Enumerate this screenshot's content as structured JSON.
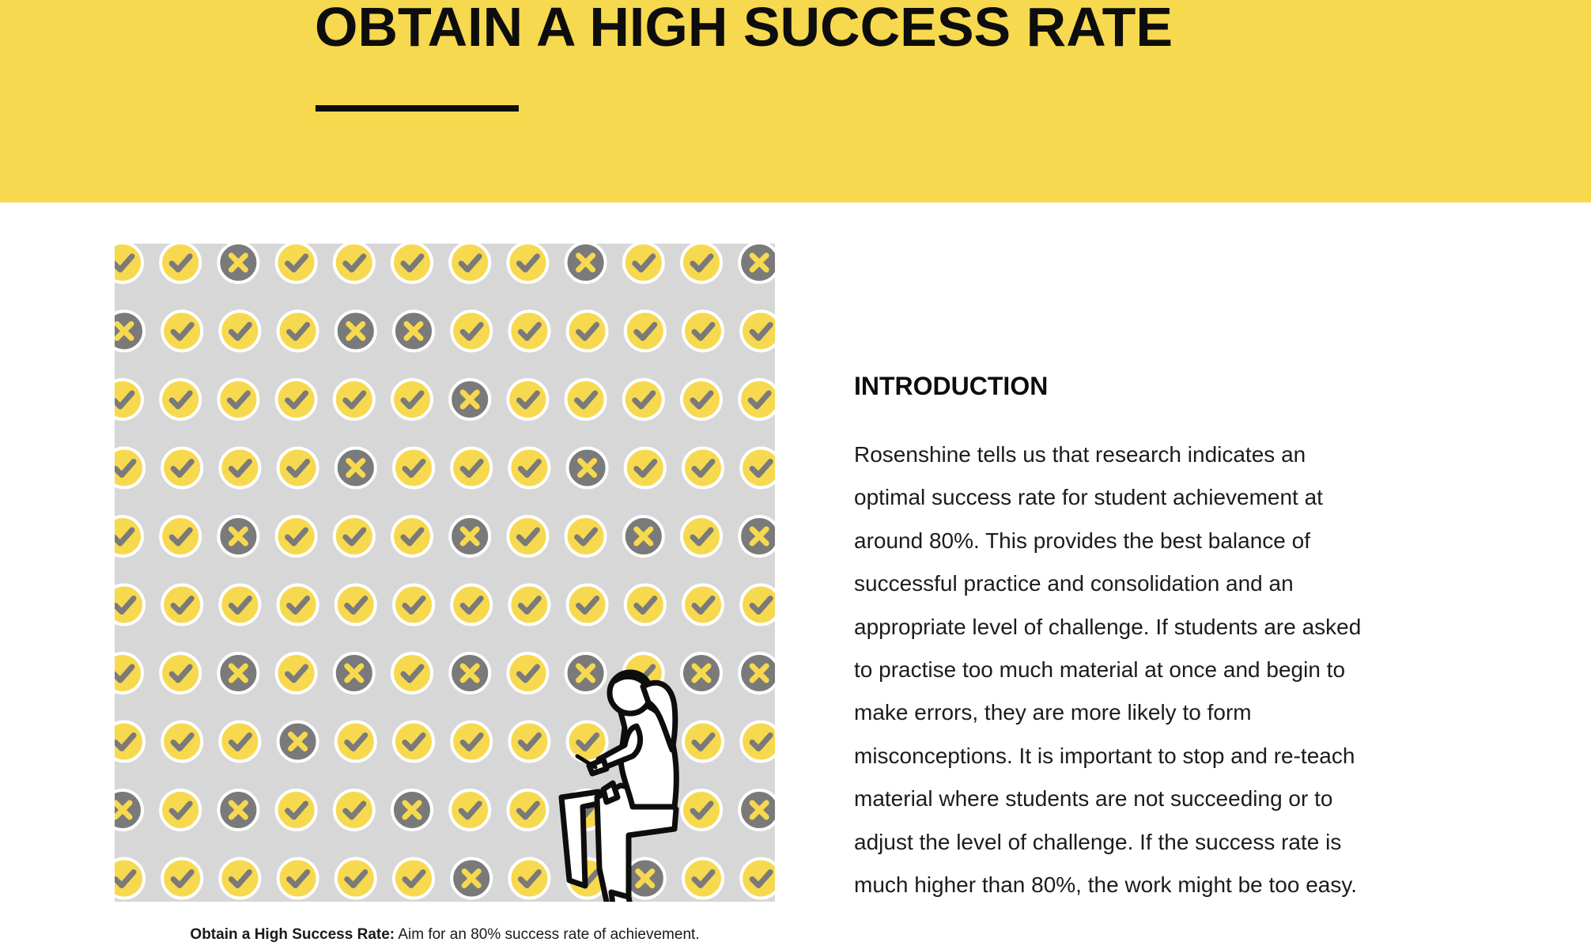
{
  "hero": {
    "title": "OBTAIN A HIGH SUCCESS RATE",
    "background_color": "#f7d94f"
  },
  "figure": {
    "description_icons": {
      "correct": "check-icon",
      "incorrect": "cross-icon",
      "person": "seated-student-writing-icon"
    },
    "colors": {
      "background": "#d7d7d7",
      "yellow": "#f7d94f",
      "gray": "#7a7a7a"
    },
    "grid": [
      "CCXCCCCCXCCX",
      "XCCCXXCCCCCC",
      "CCCCCCXCCCCC",
      "CCCCXCCCXCCC",
      "CCXCCCXCCXCX",
      "CCCCCCCCCCCC",
      "CCXCXCXCXCXX",
      "CCCXCCCCCCCC",
      "XCXCCXCCCCCX",
      "CCCCCCXCCXCC"
    ]
  },
  "caption": {
    "label": "Obtain a High Success Rate:",
    "text": " Aim for an 80% success rate of achievement."
  },
  "section": {
    "heading": "INTRODUCTION",
    "body": "Rosenshine tells us that research indicates an optimal success rate for student achievement at around 80%. This provides the best balance of successful practice and consolidation and an appropriate level of challenge. If students are asked to practise too much material at once and begin to make errors, they are more likely to form misconceptions. It is important to stop and re-teach material where students are not succeeding or to adjust the level of challenge. If the success rate is much higher than 80%, the work might be too easy."
  }
}
